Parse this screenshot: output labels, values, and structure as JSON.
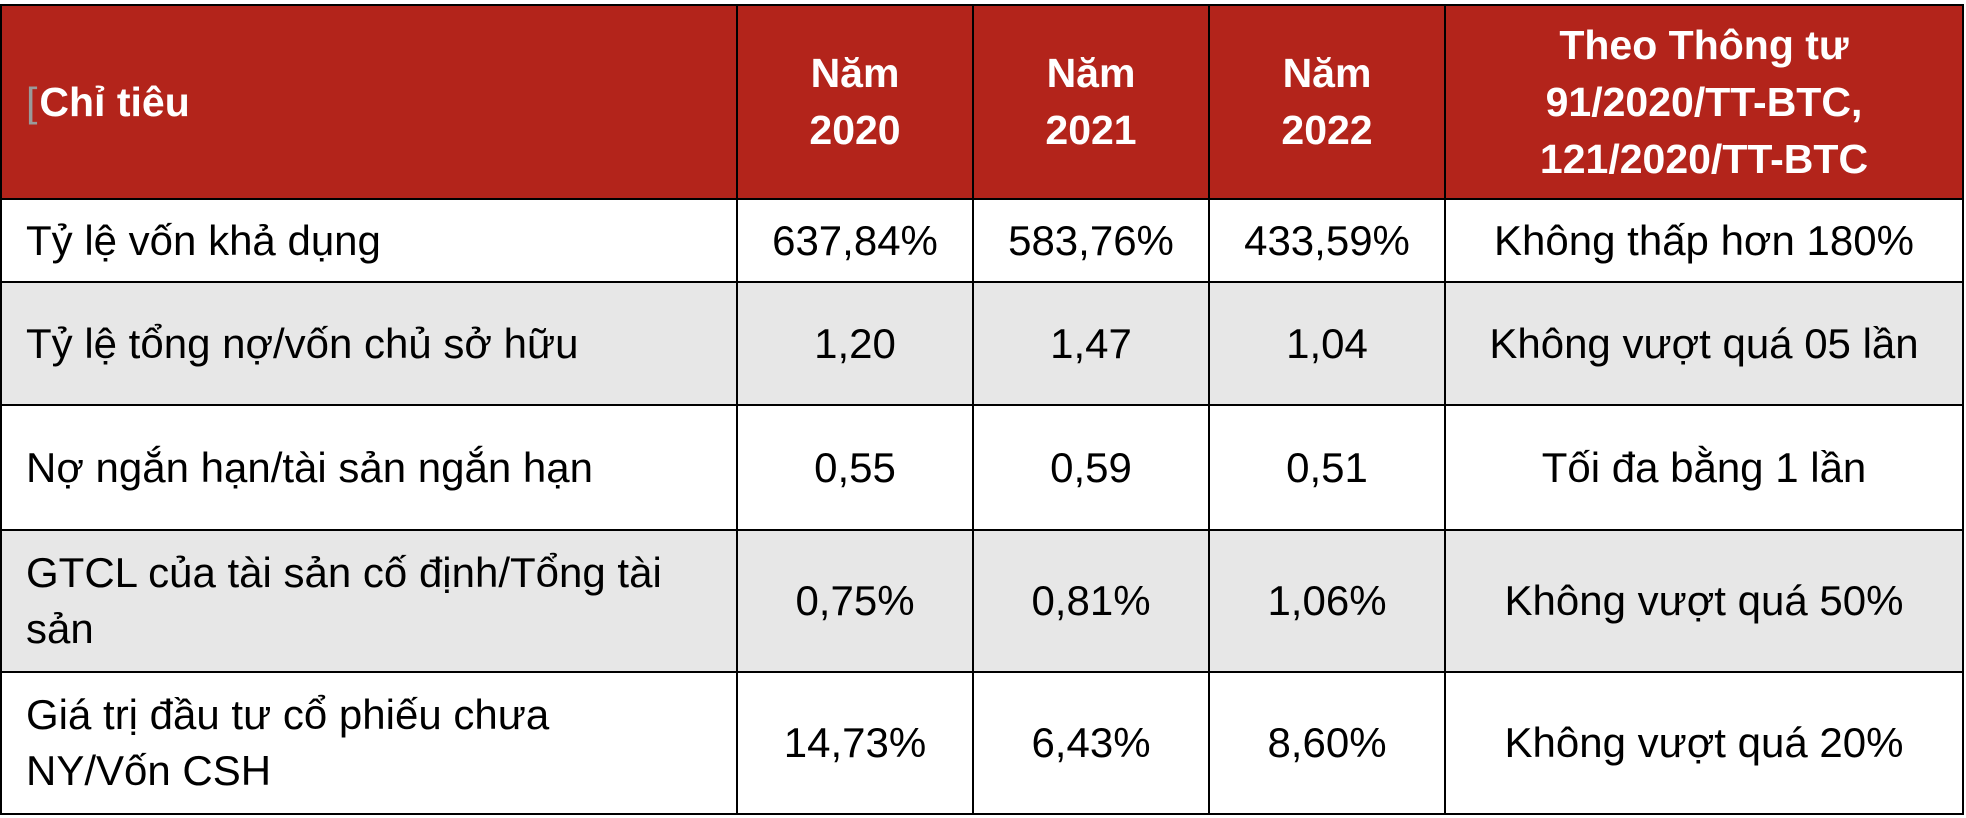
{
  "table": {
    "headers": {
      "indicator": "Chỉ tiêu",
      "y2020": [
        "Năm",
        "2020"
      ],
      "y2021": [
        "Năm",
        "2021"
      ],
      "y2022": [
        "Năm",
        "2022"
      ],
      "regulation": [
        "Theo Thông tư",
        "91/2020/TT-BTC,",
        "121/2020/TT-BTC"
      ]
    },
    "rows": [
      {
        "label": "Tỷ lệ vốn khả dụng",
        "y2020": "637,84%",
        "y2021": "583,76%",
        "y2022": "433,59%",
        "regulation": "Không thấp hơn 180%"
      },
      {
        "label": "Tỷ lệ tổng nợ/vốn chủ sở hữu",
        "y2020": "1,20",
        "y2021": "1,47",
        "y2022": "1,04",
        "regulation": "Không vượt quá 05 lần"
      },
      {
        "label": "Nợ ngắn hạn/tài sản ngắn hạn",
        "y2020": "0,55",
        "y2021": "0,59",
        "y2022": "0,51",
        "regulation": "Tối đa bằng 1 lần"
      },
      {
        "label": [
          "GTCL của tài sản cố định/Tổng tài",
          "sản"
        ],
        "y2020": "0,75%",
        "y2021": "0,81%",
        "y2022": "1,06%",
        "regulation": "Không vượt quá 50%"
      },
      {
        "label": [
          "Giá trị đầu tư cổ phiếu chưa",
          "NY/Vốn CSH"
        ],
        "y2020": "14,73%",
        "y2021": "6,43%",
        "y2022": "8,60%",
        "regulation": "Không vượt quá 20%"
      }
    ]
  },
  "colors": {
    "header_background": "#b3241b",
    "header_text": "#ffffff",
    "alternate_row_background": "#e7e7e7",
    "border": "#000000"
  }
}
